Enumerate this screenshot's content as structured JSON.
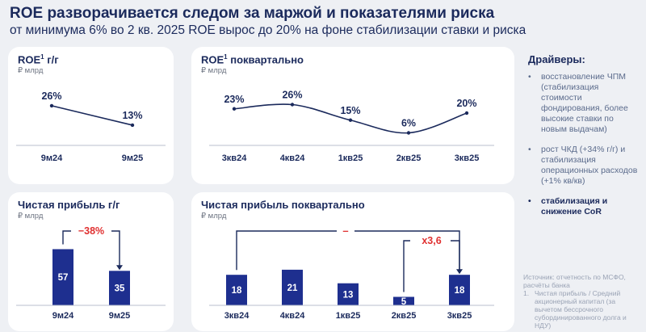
{
  "header": {
    "title": "ROE разворачивается следом за маржой и показателями риска",
    "subtitle": "от минимума 6% во 2 кв. 2025 ROE вырос до 20% на фоне стабилизации ставки и риска"
  },
  "panels": {
    "roe_yoy": {
      "title": "ROE",
      "sup": "1",
      "title_suffix": " г/г",
      "unit": "₽ млрд"
    },
    "roe_q": {
      "title": "ROE",
      "sup": "1",
      "title_suffix": " поквартально",
      "unit": "₽ млрд"
    },
    "np_yoy": {
      "title": "Чистая прибыль г/г",
      "unit": "₽ млрд"
    },
    "np_q": {
      "title": "Чистая прибыль поквартально",
      "unit": "₽ млрд"
    }
  },
  "chart_data": [
    {
      "type": "line",
      "categories": [
        "9м24",
        "9м25"
      ],
      "values": [
        26,
        13
      ],
      "labels": [
        "26%",
        "13%"
      ]
    },
    {
      "type": "line",
      "categories": [
        "3кв24",
        "4кв24",
        "1кв25",
        "2кв25",
        "3кв25"
      ],
      "values": [
        23,
        26,
        15,
        6,
        20
      ],
      "labels": [
        "23%",
        "26%",
        "15%",
        "6%",
        "20%"
      ]
    },
    {
      "type": "bar",
      "categories": [
        "9м24",
        "9м25"
      ],
      "values": [
        57,
        35
      ],
      "labels": [
        "57",
        "35"
      ],
      "annotation": "−38%",
      "colors": {
        "bar": "#1e2f8f",
        "annotation": "#e03131"
      }
    },
    {
      "type": "bar",
      "categories": [
        "3кв24",
        "4кв24",
        "1кв25",
        "2кв25",
        "3кв25"
      ],
      "values": [
        18,
        21,
        13,
        5,
        18
      ],
      "labels": [
        "18",
        "21",
        "13",
        "5",
        "18"
      ],
      "annotations": [
        "–",
        "x3,6"
      ],
      "colors": {
        "bar": "#1e2f8f",
        "annotation": "#e03131"
      }
    }
  ],
  "drivers": {
    "title": "Драйверы:",
    "items": [
      "восстановление ЧПМ (стабилизация стоимости фондирования, более высокие ставки по новым выдачам)",
      "рост ЧКД (+34% г/г) и стабилизация операционных расходов (+1% кв/кв)",
      "стабилизация и снижение CoR"
    ]
  },
  "source": {
    "text": "Источник: отчетность по МСФО, расчёты банка",
    "footnote_num": "1.",
    "footnote": "Чистая прибыль / Средний акционерный капитал (за вычетом бессрочного субординированного долга и НДУ)"
  },
  "colors": {
    "navy": "#1b2a5c",
    "bar": "#1e2f8f",
    "red": "#e03131",
    "axis": "#b8bfcc"
  }
}
